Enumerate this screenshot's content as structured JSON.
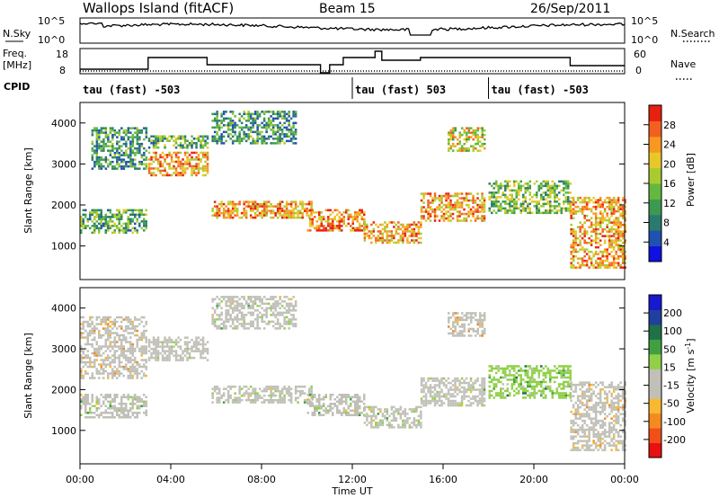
{
  "header": {
    "station": "Wallops Island (fitACF)",
    "beam": "Beam 15",
    "date": "26/Sep/2011"
  },
  "sky_panel": {
    "label": "N.Sky",
    "right_label": "N.Search",
    "left_ticks": [
      "10^5",
      "10^0"
    ],
    "right_ticks": [
      "10^5",
      "10^0"
    ]
  },
  "freq_panel": {
    "label_line1": "Freq.",
    "label_line2": "[MHz]",
    "right_label": "Nave",
    "left_ticks": [
      "18",
      "8"
    ],
    "right_ticks": [
      "60",
      "0"
    ]
  },
  "cpid": {
    "label": "CPID",
    "segments": [
      {
        "start_hour": 0,
        "text": "tau (fast) -503"
      },
      {
        "start_hour": 12.0,
        "text": "tau (fast) 503"
      },
      {
        "start_hour": 18.0,
        "text": "tau (fast) -503"
      }
    ]
  },
  "chart_data": [
    {
      "type": "heatmap",
      "name": "power",
      "ylabel": "Slant Range [km]",
      "xlabel": "",
      "xlim": [
        0,
        24
      ],
      "ylim": [
        180,
        4500
      ],
      "yticks": [
        "1000",
        "2000",
        "3000",
        "4000"
      ],
      "colorbar": {
        "label": "Power [dB]",
        "ticks": [
          "28",
          "24",
          "20",
          "16",
          "12",
          "8",
          "4"
        ],
        "range": [
          0,
          30
        ],
        "colors": [
          "#1010e0",
          "#2050b0",
          "#2a7a70",
          "#3c9a50",
          "#64b840",
          "#a8cc30",
          "#e8c828",
          "#f89820",
          "#f26020",
          "#e82010"
        ]
      },
      "bands": [
        {
          "hours": [
            0.0,
            2.9
          ],
          "range_km": [
            1300,
            1900
          ],
          "power_db": 12
        },
        {
          "hours": [
            0.5,
            2.9
          ],
          "range_km": [
            2900,
            3900
          ],
          "power_db": 10
        },
        {
          "hours": [
            3.0,
            5.6
          ],
          "range_km": [
            2700,
            3300
          ],
          "power_db": 22
        },
        {
          "hours": [
            3.0,
            5.6
          ],
          "range_km": [
            3400,
            3700
          ],
          "power_db": 12
        },
        {
          "hours": [
            5.8,
            10.2
          ],
          "range_km": [
            1700,
            2100
          ],
          "power_db": 22
        },
        {
          "hours": [
            5.8,
            9.5
          ],
          "range_km": [
            3500,
            4300
          ],
          "power_db": 10
        },
        {
          "hours": [
            10.0,
            12.5
          ],
          "range_km": [
            1400,
            1900
          ],
          "power_db": 24
        },
        {
          "hours": [
            12.5,
            15.0
          ],
          "range_km": [
            1100,
            1600
          ],
          "power_db": 22
        },
        {
          "hours": [
            15.0,
            17.8
          ],
          "range_km": [
            1600,
            2300
          ],
          "power_db": 22
        },
        {
          "hours": [
            16.2,
            17.8
          ],
          "range_km": [
            3300,
            3900
          ],
          "power_db": 18
        },
        {
          "hours": [
            18.0,
            21.6
          ],
          "range_km": [
            1800,
            2600
          ],
          "power_db": 14
        },
        {
          "hours": [
            21.6,
            24.0
          ],
          "range_km": [
            500,
            2200
          ],
          "power_db": 22
        }
      ]
    },
    {
      "type": "heatmap",
      "name": "velocity",
      "ylabel": "Slant Range [km]",
      "xlabel": "Time UT",
      "xlim": [
        0,
        24
      ],
      "ylim": [
        180,
        4500
      ],
      "yticks": [
        "1000",
        "2000",
        "3000",
        "4000"
      ],
      "xticks": [
        "00:00",
        "04:00",
        "08:00",
        "12:00",
        "16:00",
        "20:00",
        "00:00"
      ],
      "colorbar": {
        "label": "Velocity [m s^-1]",
        "ticks": [
          "200",
          "100",
          "50",
          "15",
          "-15",
          "-50",
          "-100",
          "-200"
        ],
        "range": [
          -250,
          250
        ],
        "colors": [
          "#e81010",
          "#f05018",
          "#f48a20",
          "#f8b830",
          "#c0c0b8",
          "#c0c0b8",
          "#90d048",
          "#40a040",
          "#207048",
          "#2040a0",
          "#1818d0"
        ]
      },
      "bands": [
        {
          "hours": [
            0.0,
            2.9
          ],
          "range_km": [
            1300,
            1900
          ],
          "velocity": 0
        },
        {
          "hours": [
            0.0,
            2.9
          ],
          "range_km": [
            2300,
            3800
          ],
          "velocity": -60
        },
        {
          "hours": [
            3.0,
            5.6
          ],
          "range_km": [
            2700,
            3300
          ],
          "velocity": 0
        },
        {
          "hours": [
            5.8,
            10.2
          ],
          "range_km": [
            1700,
            2100
          ],
          "velocity": 0
        },
        {
          "hours": [
            5.8,
            9.5
          ],
          "range_km": [
            3500,
            4300
          ],
          "velocity": 0
        },
        {
          "hours": [
            10.0,
            12.5
          ],
          "range_km": [
            1400,
            1900
          ],
          "velocity": 0
        },
        {
          "hours": [
            12.5,
            15.0
          ],
          "range_km": [
            1100,
            1600
          ],
          "velocity": 0
        },
        {
          "hours": [
            15.0,
            17.8
          ],
          "range_km": [
            1600,
            2300
          ],
          "velocity": 0
        },
        {
          "hours": [
            16.2,
            17.8
          ],
          "range_km": [
            3300,
            3900
          ],
          "velocity": -60
        },
        {
          "hours": [
            18.0,
            21.6
          ],
          "range_km": [
            1800,
            2600
          ],
          "velocity": 60
        },
        {
          "hours": [
            21.6,
            24.0
          ],
          "range_km": [
            500,
            2200
          ],
          "velocity": -60
        }
      ]
    }
  ]
}
